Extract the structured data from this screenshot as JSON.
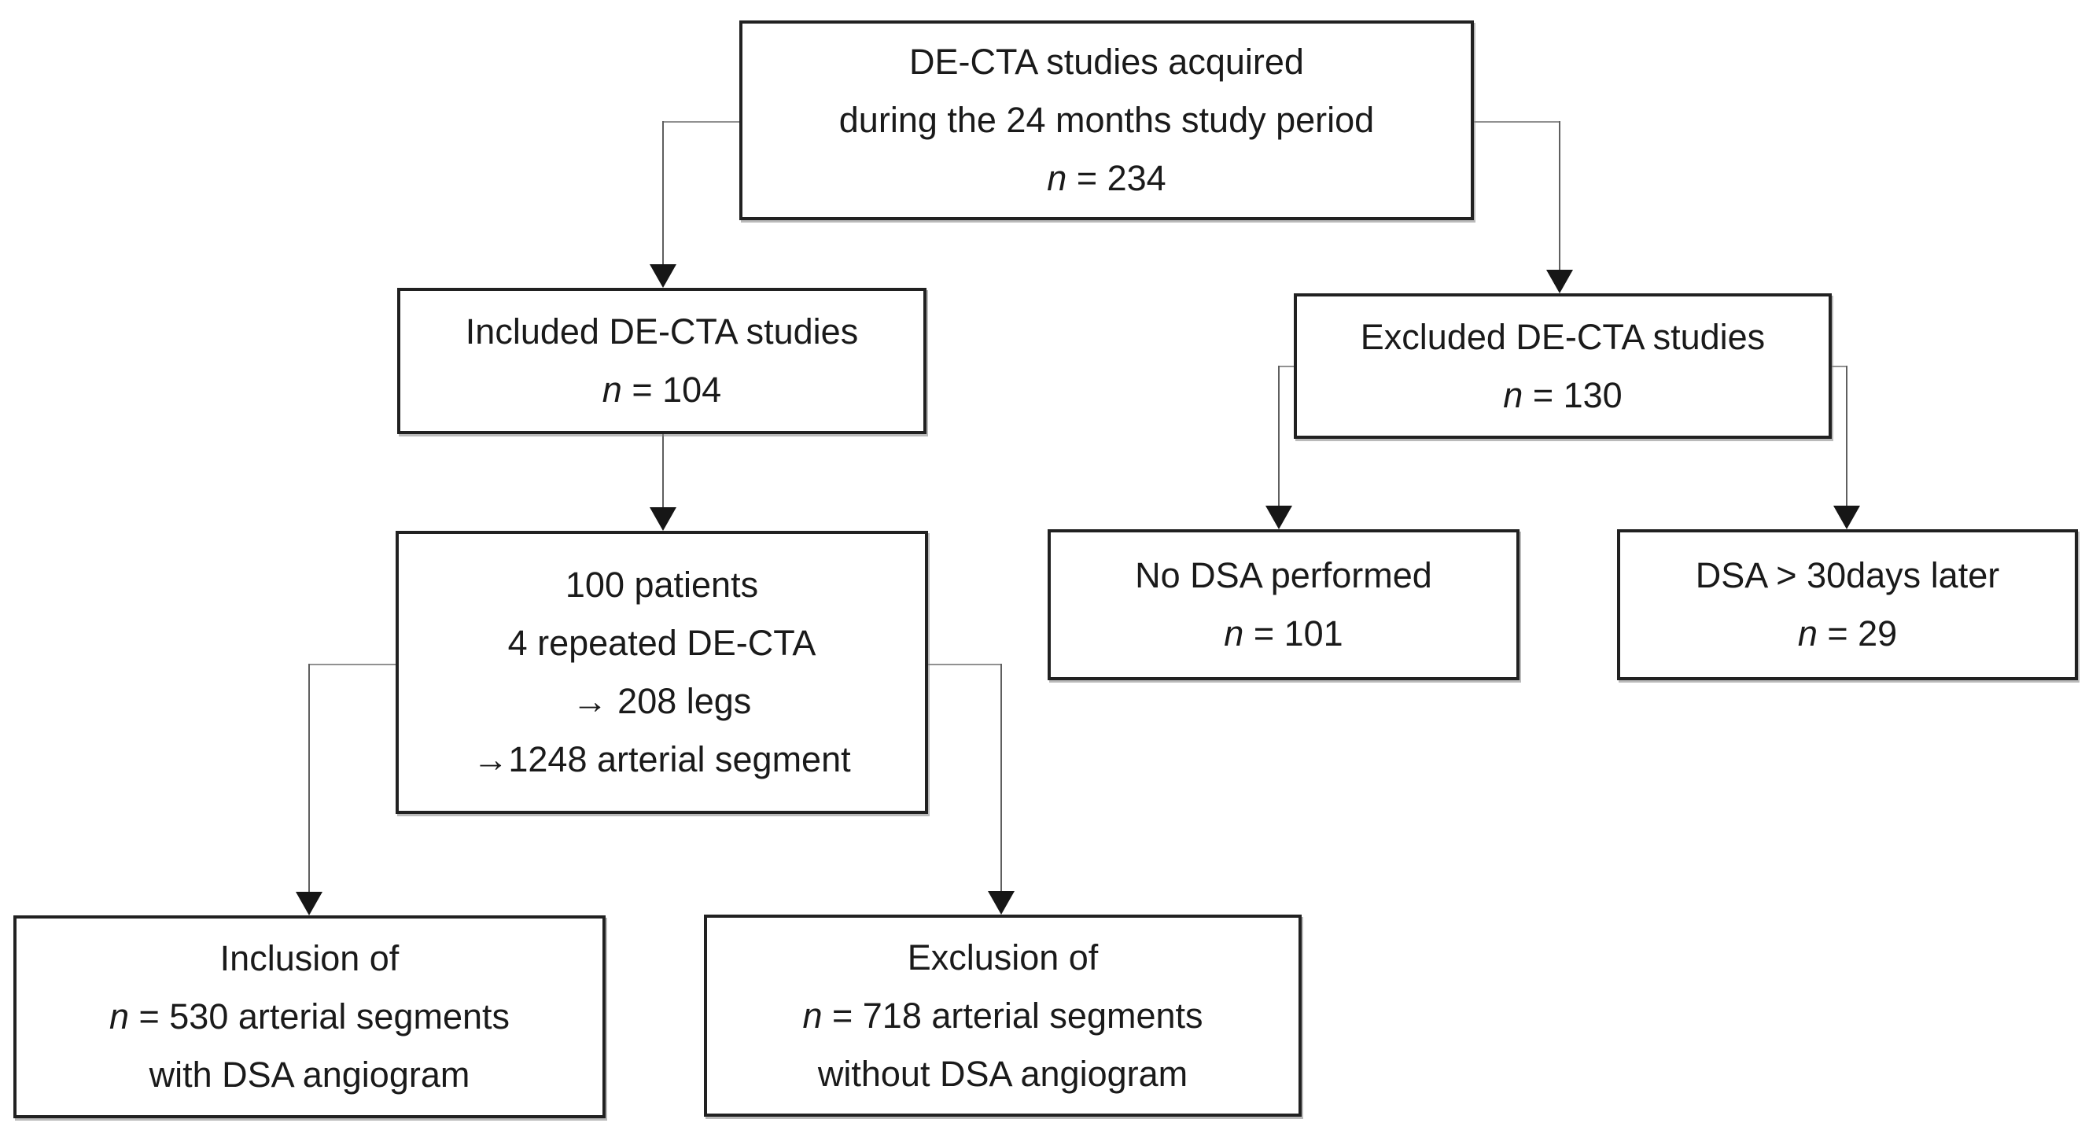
{
  "diagram": {
    "type": "flowchart",
    "description": "DE-CTA study inclusion/exclusion flow diagram",
    "colors": {
      "background": "#ffffff",
      "box_bg": "#ffffff",
      "box_border": "#212121",
      "text": "#1a1a1a",
      "connector_h": "#919191",
      "connector_v": "#5f5f5f",
      "arrow": "#161616"
    },
    "boxes": [
      {
        "id": "acquired",
        "lines": [
          [
            {
              "t": "DE-CTA studies acquired"
            }
          ],
          [
            {
              "t": "during the 24 months study period"
            }
          ],
          [
            {
              "t": "n",
              "i": true
            },
            {
              "t": " = 234"
            }
          ]
        ]
      },
      {
        "id": "included",
        "lines": [
          [
            {
              "t": "Included DE-CTA studies"
            }
          ],
          [
            {
              "t": "n",
              "i": true
            },
            {
              "t": " = 104"
            }
          ]
        ]
      },
      {
        "id": "patients",
        "lines": [
          [
            {
              "t": "100 patients"
            }
          ],
          [
            {
              "t": "4 repeated DE-CTA"
            }
          ],
          [
            {
              "t": "→ 208 legs"
            }
          ],
          [
            {
              "t": "→1248 arterial segment"
            }
          ]
        ]
      },
      {
        "id": "excluded",
        "lines": [
          [
            {
              "t": "Excluded DE-CTA studies"
            }
          ],
          [
            {
              "t": "n",
              "i": true
            },
            {
              "t": " = 130"
            }
          ]
        ]
      },
      {
        "id": "no-dsa",
        "lines": [
          [
            {
              "t": "No DSA performed"
            }
          ],
          [
            {
              "t": "n",
              "i": true
            },
            {
              "t": " = 101"
            }
          ]
        ]
      },
      {
        "id": "dsa-later",
        "lines": [
          [
            {
              "t": "DSA > 30days later"
            }
          ],
          [
            {
              "t": "n",
              "i": true
            },
            {
              "t": " = 29"
            }
          ]
        ]
      },
      {
        "id": "inclusion",
        "lines": [
          [
            {
              "t": "Inclusion of"
            }
          ],
          [
            {
              "t": "n",
              "i": true
            },
            {
              "t": " = 530 arterial segments"
            }
          ],
          [
            {
              "t": "with DSA angiogram"
            }
          ]
        ]
      },
      {
        "id": "exclusion",
        "lines": [
          [
            {
              "t": "Exclusion of"
            }
          ],
          [
            {
              "t": "n",
              "i": true
            },
            {
              "t": " = 718 arterial segments"
            }
          ],
          [
            {
              "t": "without DSA angiogram"
            }
          ]
        ]
      }
    ]
  }
}
